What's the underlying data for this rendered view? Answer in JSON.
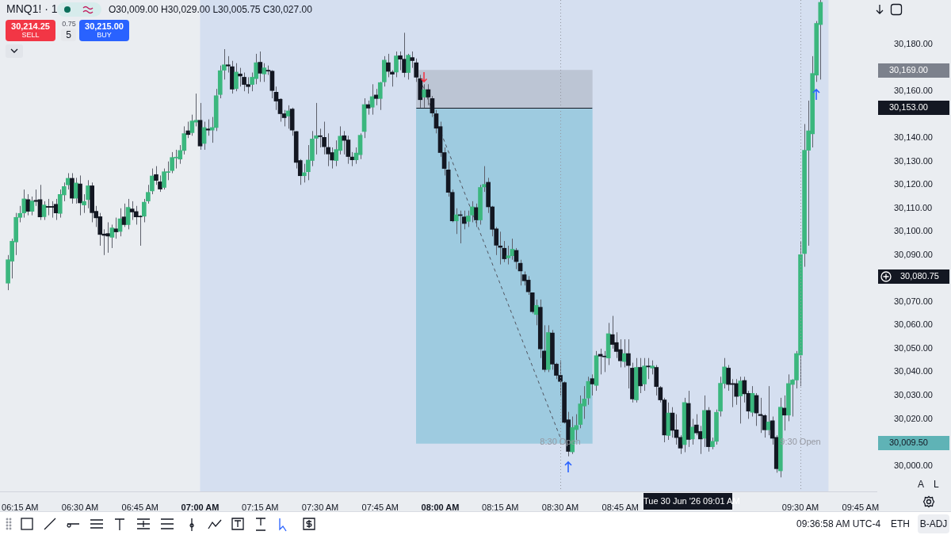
{
  "chart_data": {
    "type": "candlestick",
    "x": [
      "2026-06-30T06:12",
      "2026-06-30T06:13",
      "2026-06-30T06:14",
      "2026-06-30T06:15",
      "2026-06-30T06:16",
      "2026-06-30T06:17",
      "2026-06-30T06:18",
      "2026-06-30T06:19",
      "2026-06-30T06:20",
      "2026-06-30T06:21",
      "2026-06-30T06:22",
      "2026-06-30T06:23",
      "2026-06-30T06:24",
      "2026-06-30T06:25",
      "2026-06-30T06:26",
      "2026-06-30T06:27",
      "2026-06-30T06:28",
      "2026-06-30T06:29",
      "2026-06-30T06:30",
      "2026-06-30T06:31",
      "2026-06-30T06:32",
      "2026-06-30T06:33",
      "2026-06-30T06:34",
      "2026-06-30T06:35",
      "2026-06-30T06:36",
      "2026-06-30T06:37",
      "2026-06-30T06:38",
      "2026-06-30T06:39",
      "2026-06-30T06:40",
      "2026-06-30T06:41",
      "2026-06-30T06:42",
      "2026-06-30T06:43",
      "2026-06-30T06:44",
      "2026-06-30T06:45",
      "2026-06-30T06:46",
      "2026-06-30T06:47",
      "2026-06-30T06:48",
      "2026-06-30T06:49",
      "2026-06-30T06:50",
      "2026-06-30T06:51",
      "2026-06-30T06:52",
      "2026-06-30T06:53",
      "2026-06-30T06:54",
      "2026-06-30T06:55",
      "2026-06-30T06:56",
      "2026-06-30T06:57",
      "2026-06-30T06:58",
      "2026-06-30T06:59",
      "2026-06-30T07:00",
      "2026-06-30T07:01",
      "2026-06-30T07:02",
      "2026-06-30T07:03",
      "2026-06-30T07:04",
      "2026-06-30T07:05",
      "2026-06-30T07:06",
      "2026-06-30T07:07",
      "2026-06-30T07:08",
      "2026-06-30T07:09",
      "2026-06-30T07:10",
      "2026-06-30T07:11",
      "2026-06-30T07:12",
      "2026-06-30T07:13",
      "2026-06-30T07:14",
      "2026-06-30T07:15",
      "2026-06-30T07:16",
      "2026-06-30T07:17",
      "2026-06-30T07:18",
      "2026-06-30T07:19",
      "2026-06-30T07:20",
      "2026-06-30T07:21",
      "2026-06-30T07:22",
      "2026-06-30T07:23",
      "2026-06-30T07:24",
      "2026-06-30T07:25",
      "2026-06-30T07:26",
      "2026-06-30T07:27",
      "2026-06-30T07:28",
      "2026-06-30T07:29",
      "2026-06-30T07:30",
      "2026-06-30T07:31",
      "2026-06-30T07:32",
      "2026-06-30T07:33",
      "2026-06-30T07:34",
      "2026-06-30T07:35",
      "2026-06-30T07:36",
      "2026-06-30T07:37",
      "2026-06-30T07:38",
      "2026-06-30T07:39",
      "2026-06-30T07:40",
      "2026-06-30T07:41",
      "2026-06-30T07:42",
      "2026-06-30T07:43",
      "2026-06-30T07:44",
      "2026-06-30T07:45",
      "2026-06-30T07:46",
      "2026-06-30T07:47",
      "2026-06-30T07:48",
      "2026-06-30T07:49",
      "2026-06-30T07:50",
      "2026-06-30T07:51",
      "2026-06-30T07:52",
      "2026-06-30T07:53",
      "2026-06-30T07:54",
      "2026-06-30T07:55",
      "2026-06-30T07:56",
      "2026-06-30T07:57",
      "2026-06-30T07:58",
      "2026-06-30T07:59",
      "2026-06-30T08:00",
      "2026-06-30T08:01",
      "2026-06-30T08:02",
      "2026-06-30T08:03",
      "2026-06-30T08:04",
      "2026-06-30T08:05",
      "2026-06-30T08:06",
      "2026-06-30T08:07",
      "2026-06-30T08:08",
      "2026-06-30T08:09",
      "2026-06-30T08:10",
      "2026-06-30T08:11",
      "2026-06-30T08:12",
      "2026-06-30T08:13",
      "2026-06-30T08:14",
      "2026-06-30T08:15",
      "2026-06-30T08:16",
      "2026-06-30T08:17",
      "2026-06-30T08:18",
      "2026-06-30T08:19",
      "2026-06-30T08:20",
      "2026-06-30T08:21",
      "2026-06-30T08:22",
      "2026-06-30T08:23",
      "2026-06-30T08:24",
      "2026-06-30T08:25",
      "2026-06-30T08:26",
      "2026-06-30T08:27",
      "2026-06-30T08:28",
      "2026-06-30T08:29",
      "2026-06-30T08:30",
      "2026-06-30T08:31",
      "2026-06-30T08:32",
      "2026-06-30T08:33",
      "2026-06-30T08:34",
      "2026-06-30T08:35",
      "2026-06-30T08:36",
      "2026-06-30T08:37",
      "2026-06-30T08:38",
      "2026-06-30T08:39",
      "2026-06-30T08:40",
      "2026-06-30T08:41",
      "2026-06-30T08:42",
      "2026-06-30T08:43",
      "2026-06-30T08:44",
      "2026-06-30T08:45",
      "2026-06-30T08:46",
      "2026-06-30T08:47",
      "2026-06-30T08:48",
      "2026-06-30T08:49",
      "2026-06-30T08:50",
      "2026-06-30T08:51",
      "2026-06-30T08:52",
      "2026-06-30T08:53",
      "2026-06-30T08:54",
      "2026-06-30T08:55",
      "2026-06-30T08:56",
      "2026-06-30T08:57",
      "2026-06-30T08:58",
      "2026-06-30T08:59",
      "2026-06-30T09:00",
      "2026-06-30T09:01",
      "2026-06-30T09:02",
      "2026-06-30T09:03",
      "2026-06-30T09:04",
      "2026-06-30T09:05",
      "2026-06-30T09:06",
      "2026-06-30T09:07",
      "2026-06-30T09:08",
      "2026-06-30T09:09",
      "2026-06-30T09:10",
      "2026-06-30T09:11",
      "2026-06-30T09:12",
      "2026-06-30T09:13",
      "2026-06-30T09:14",
      "2026-06-30T09:15",
      "2026-06-30T09:16",
      "2026-06-30T09:17",
      "2026-06-30T09:18",
      "2026-06-30T09:19",
      "2026-06-30T09:20",
      "2026-06-30T09:21",
      "2026-06-30T09:22",
      "2026-06-30T09:23",
      "2026-06-30T09:24",
      "2026-06-30T09:25",
      "2026-06-30T09:26",
      "2026-06-30T09:27",
      "2026-06-30T09:28",
      "2026-06-30T09:29",
      "2026-06-30T09:30",
      "2026-06-30T09:31",
      "2026-06-30T09:32",
      "2026-06-30T09:33",
      "2026-06-30T09:34",
      "2026-06-30T09:35"
    ],
    "ohlc": [
      [
        30078,
        30090,
        30075,
        30088
      ],
      [
        30087.4,
        30097,
        30080,
        30095.9
      ],
      [
        30095.6,
        30108,
        30090,
        30106.1
      ],
      [
        30106.1,
        30111,
        30104,
        30107.8
      ],
      [
        30108,
        30118,
        30106,
        30114
      ],
      [
        30113.7,
        30116,
        30107,
        30108.7
      ],
      [
        30108.7,
        30115,
        30107,
        30113.1
      ],
      [
        30113.4,
        30118,
        30111,
        30112.9
      ],
      [
        30113.7,
        30120,
        30105,
        30106.3
      ],
      [
        30106.4,
        30113,
        30105,
        30111.4
      ],
      [
        30110.8,
        30114,
        30107,
        30110.4
      ],
      [
        30110.8,
        30113,
        30106,
        30110.4
      ],
      [
        30111.7,
        30114,
        30105,
        30108
      ],
      [
        30107.8,
        30118,
        30106,
        30115.9
      ],
      [
        30115.7,
        30121,
        30113,
        30119.3
      ],
      [
        30120,
        30125,
        30118,
        30122.8
      ],
      [
        30122.8,
        30125,
        30112,
        30114.3
      ],
      [
        30114.3,
        30123,
        30112,
        30120.8
      ],
      [
        30120.4,
        30124,
        30107,
        30112.3
      ],
      [
        30111.4,
        30116,
        30108,
        30112.9
      ],
      [
        30113.7,
        30122,
        30110,
        30119.6
      ],
      [
        30119.6,
        30121,
        30104,
        30108.1
      ],
      [
        30108.7,
        30111,
        30102,
        30105.9
      ],
      [
        30106.4,
        30108,
        30094,
        30098.8
      ],
      [
        30099,
        30101,
        30090,
        30098.4
      ],
      [
        30099.2,
        30104,
        30091,
        30098.1
      ],
      [
        30097.6,
        30103,
        30093,
        30101.6
      ],
      [
        30101.2,
        30106,
        30097,
        30099.9
      ],
      [
        30100.1,
        30110,
        30098,
        30105.5
      ],
      [
        30106.3,
        30112,
        30102,
        30103
      ],
      [
        30103,
        30114,
        30101,
        30110.4
      ],
      [
        30109.7,
        30113,
        30105,
        30108.4
      ],
      [
        30108.6,
        30111,
        30103,
        30106.3
      ],
      [
        30106.5,
        30107,
        30094,
        30106.3
      ],
      [
        30106.6,
        30114,
        30104,
        30112.6
      ],
      [
        30113.1,
        30120,
        30112,
        30116.8
      ],
      [
        30117.4,
        30127,
        30116,
        30123.8
      ],
      [
        30124.4,
        30128,
        30120,
        30121.9
      ],
      [
        30121.3,
        30124,
        30117,
        30118.2
      ],
      [
        30118.9,
        30127,
        30118,
        30125.6
      ],
      [
        30125.3,
        30130,
        30122,
        30125.6
      ],
      [
        30126.1,
        30134,
        30125,
        30131.7
      ],
      [
        30131.5,
        30135,
        30127,
        30131.8
      ],
      [
        30131,
        30137,
        30129,
        30134.7
      ],
      [
        30134.7,
        30145,
        30133,
        30141.9
      ],
      [
        30143.1,
        30147,
        30140,
        30141.5
      ],
      [
        30142.3,
        30150,
        30141,
        30147.3
      ],
      [
        30146.8,
        30159,
        30145,
        30147.6
      ],
      [
        30147.6,
        30155,
        30135,
        30136.6
      ],
      [
        30137.7,
        30147,
        30135,
        30144.5
      ],
      [
        30143.9,
        30148,
        30141,
        30143.4
      ],
      [
        30143.4,
        30149,
        30138,
        30144.5
      ],
      [
        30144.5,
        30161,
        30143,
        30158.1
      ],
      [
        30158.6,
        30171,
        30157,
        30168.8
      ],
      [
        30169,
        30178,
        30165,
        30171.3
      ],
      [
        30171.3,
        30175,
        30168,
        30170.8
      ],
      [
        30170.5,
        30173,
        30159,
        30160.9
      ],
      [
        30161.1,
        30172,
        30160,
        30168.2
      ],
      [
        30167.4,
        30170,
        30162,
        30166.5
      ],
      [
        30166,
        30168,
        30160,
        30162.9
      ],
      [
        30162.9,
        30166,
        30159,
        30162
      ],
      [
        30162.9,
        30168,
        30160,
        30166
      ],
      [
        30165.4,
        30176,
        30163,
        30172.2
      ],
      [
        30172.4,
        30177,
        30164,
        30167.7
      ],
      [
        30167.4,
        30172,
        30164,
        30170
      ],
      [
        30169,
        30171,
        30167,
        30168.6
      ],
      [
        30168.6,
        30169,
        30157,
        30160.3
      ],
      [
        30159.6,
        30162,
        30152,
        30155.8
      ],
      [
        30156.6,
        30157,
        30147,
        30150.4
      ],
      [
        30150.4,
        30152,
        30145,
        30148.7
      ],
      [
        30149.4,
        30154,
        30144,
        30151.6
      ],
      [
        30152.4,
        30153,
        30141,
        30143.4
      ],
      [
        30142.8,
        30143,
        30127,
        30129.6
      ],
      [
        30130.4,
        30131,
        30120,
        30123.9
      ],
      [
        30123.9,
        30129,
        30121,
        30125.2
      ],
      [
        30125.6,
        30137,
        30122,
        30130.6
      ],
      [
        30130.4,
        30143,
        30128,
        30139.6
      ],
      [
        30139.9,
        30155,
        30133,
        30141
      ],
      [
        30141,
        30144,
        30136,
        30140.6
      ],
      [
        30140.3,
        30147,
        30133,
        30136.3
      ],
      [
        30136,
        30142,
        30128,
        30133.2
      ],
      [
        30133.8,
        30136,
        30127,
        30130.6
      ],
      [
        30130.4,
        30139,
        30128,
        30135.1
      ],
      [
        30134.7,
        30145,
        30133,
        30140.8
      ],
      [
        30141,
        30143,
        30133,
        30139
      ],
      [
        30139.2,
        30141,
        30129,
        30132.1
      ],
      [
        30131.9,
        30134,
        30128,
        30130.7
      ],
      [
        30130.7,
        30136,
        30129,
        30133.6
      ],
      [
        30132.9,
        30142,
        30131,
        30141.2
      ],
      [
        30142.8,
        30157,
        30140,
        30154.3
      ],
      [
        30154.3,
        30156,
        30150,
        30152.8
      ],
      [
        30153.2,
        30163,
        30150,
        30157.7
      ],
      [
        30158.4,
        30161,
        30154,
        30156.9
      ],
      [
        30156.9,
        30164,
        30152,
        30163.7
      ],
      [
        30164,
        30175,
        30162,
        30173.3
      ],
      [
        30172.2,
        30176,
        30166,
        30168.5
      ],
      [
        30168.2,
        30169,
        30162,
        30167.3
      ],
      [
        30168.2,
        30177,
        30166,
        30175.1
      ],
      [
        30175.2,
        30177,
        30169,
        30173.7
      ],
      [
        30173.7,
        30185,
        30166,
        30168
      ],
      [
        30168,
        30176,
        30165,
        30175.4
      ],
      [
        30174.4,
        30177,
        30170,
        30173.1
      ],
      [
        30172.2,
        30174,
        30164,
        30166
      ],
      [
        30165.4,
        30167,
        30153,
        30156.4
      ],
      [
        30157.5,
        30163,
        30153,
        30160.7
      ],
      [
        30160.7,
        30163,
        30154,
        30157.5
      ],
      [
        30156.9,
        30158,
        30149,
        30150.7
      ],
      [
        30150.4,
        30152,
        30142,
        30144.2
      ],
      [
        30144.9,
        30147,
        30132,
        30133.8
      ],
      [
        30133.8,
        30136,
        30124,
        30127
      ],
      [
        30126.4,
        30130,
        30115,
        30116.8
      ],
      [
        30116.8,
        30118,
        30104,
        30104.6
      ],
      [
        30104.6,
        30110,
        30099,
        30107.2
      ],
      [
        30107,
        30109,
        30095,
        30106.9
      ],
      [
        30106.3,
        30109,
        30101,
        30103.5
      ],
      [
        30104.4,
        30109,
        30102,
        30106.7
      ],
      [
        30107.1,
        30113,
        30104,
        30110.6
      ],
      [
        30110.3,
        30112,
        30102,
        30105
      ],
      [
        30105,
        30120,
        30103,
        30118.9
      ],
      [
        30119.1,
        30128,
        30117,
        30120.2
      ],
      [
        30121.1,
        30123,
        30108,
        30110.6
      ],
      [
        30110.6,
        30111,
        30098,
        30101
      ],
      [
        30101.2,
        30102,
        30090,
        30094.2
      ],
      [
        30093.9,
        30100,
        30086,
        30093.3
      ],
      [
        30092.9,
        30096,
        30087,
        30088.4
      ],
      [
        30088.8,
        30094,
        30086,
        30089.7
      ],
      [
        30089.7,
        30097,
        30088,
        30092.5
      ],
      [
        30092,
        30093,
        30084,
        30087.2
      ],
      [
        30086.5,
        30088,
        30077,
        30083.2
      ],
      [
        30081.6,
        30083,
        30077,
        30079
      ],
      [
        30079.3,
        30081,
        30073,
        30074.3
      ],
      [
        30073.9,
        30074,
        30065,
        30065.8
      ],
      [
        30064.6,
        30071,
        30060,
        30068.5
      ],
      [
        30067.7,
        30071,
        30046,
        30049.9
      ],
      [
        30049,
        30060,
        30040,
        30041.1
      ],
      [
        30041.1,
        30060,
        30040,
        30056.9
      ],
      [
        30056.7,
        30058,
        30041,
        30043.4
      ],
      [
        30043.4,
        30044,
        30037,
        30038.6
      ],
      [
        30038.6,
        30045,
        30030,
        30036
      ],
      [
        30035.5,
        30036,
        30018,
        30018.5
      ],
      [
        30019.6,
        30023,
        30004,
        30006.1
      ],
      [
        30005.9,
        30021,
        30005,
        30016.3
      ],
      [
        30015.4,
        30022,
        30011,
        30017.2
      ],
      [
        30017.6,
        30030,
        30016,
        30026.4
      ],
      [
        30025.5,
        30034,
        30020,
        30028.5
      ],
      [
        30028.9,
        30038,
        30026,
        30036
      ],
      [
        30037.2,
        30039,
        30030,
        30034.9
      ],
      [
        30034.3,
        30049,
        30032,
        30047
      ],
      [
        30047.6,
        30050,
        30039,
        30046.8
      ],
      [
        30046.8,
        30049,
        30040,
        30046.5
      ],
      [
        30046,
        30061,
        30043,
        30056.4
      ],
      [
        30056,
        30064,
        30050,
        30051.8
      ],
      [
        30052.6,
        30057,
        30046,
        30048.8
      ],
      [
        30049.6,
        30054,
        30042,
        30044.8
      ],
      [
        30044.5,
        30054,
        30042,
        30047.9
      ],
      [
        30047.9,
        30054,
        30033,
        30042.8
      ],
      [
        30041.7,
        30044,
        30027,
        30028.5
      ],
      [
        30028.1,
        30046,
        30027,
        30042
      ],
      [
        30042,
        30046,
        30031,
        30034.1
      ],
      [
        30034.9,
        30046,
        30032,
        30042.6
      ],
      [
        30042.6,
        30046,
        30037,
        30042.2
      ],
      [
        30041.7,
        30045,
        30039,
        30042.6
      ],
      [
        30042,
        30043,
        30030,
        30033.8
      ],
      [
        30033.4,
        30034,
        30027,
        30028.1
      ],
      [
        30028.1,
        30029,
        30010,
        30013.1
      ],
      [
        30012.9,
        30027,
        30011,
        30022.5
      ],
      [
        30022.5,
        30025,
        30012,
        30015.1
      ],
      [
        30015.3,
        30022,
        30009,
        30012
      ],
      [
        30012.1,
        30013,
        30005,
        30007.5
      ],
      [
        30009,
        30029,
        30005.75,
        30027
      ],
      [
        30026.6,
        30032,
        30008,
        30011.2
      ],
      [
        30011.4,
        30020,
        30009,
        30016.5
      ],
      [
        30017.4,
        30022,
        30013,
        30014
      ],
      [
        30014.6,
        30017,
        30005,
        30011.4
      ],
      [
        30011.7,
        30030,
        30008,
        30023.6
      ],
      [
        30023.6,
        30025,
        30006,
        30008.1
      ],
      [
        30008.1,
        30012,
        30007,
        30010.4
      ],
      [
        30010.4,
        30024,
        30009,
        30022.8
      ],
      [
        30023.3,
        30038,
        30021,
        30035.2
      ],
      [
        30035.1,
        30046,
        30033,
        30042.2
      ],
      [
        30041.7,
        30043,
        30032,
        30034.7
      ],
      [
        30035.1,
        30037,
        30025,
        30034.7
      ],
      [
        30035.1,
        30037,
        30026,
        30029.6
      ],
      [
        30029.8,
        30038,
        30018,
        30036.2
      ],
      [
        30036.4,
        30038,
        30027,
        30030.7
      ],
      [
        30030.9,
        30032,
        30020,
        30023.3
      ],
      [
        30022.8,
        30034,
        30021,
        30030.9
      ],
      [
        30030,
        30031,
        30017,
        30022.5
      ],
      [
        30021.9,
        30029,
        30014,
        30021.4
      ],
      [
        30021.4,
        30022,
        30012,
        30015.3
      ],
      [
        30015.3,
        30034,
        30013,
        30018.7
      ],
      [
        30019.2,
        30021,
        30009,
        30011.7
      ],
      [
        30012.1,
        30013,
        29997,
        29998.7
      ],
      [
        29997.8,
        30029,
        29995,
        30025
      ],
      [
        30024.6,
        30030,
        30015,
        30021.6
      ],
      [
        30021.6,
        30039,
        30019,
        30035.1
      ],
      [
        30034.7,
        30037,
        30021,
        30036.6
      ],
      [
        30036.6,
        30049,
        30033,
        30047.9
      ],
      [
        30047.3,
        30096,
        30034,
        30090.2
      ],
      [
        30090.6,
        30146,
        30085,
        30134.8
      ],
      [
        30134.8,
        30156,
        30094,
        30143.1
      ],
      [
        30141.8,
        30175,
        30136,
        30167.6
      ],
      [
        30166.9,
        30190,
        30164,
        30189
      ],
      [
        30188.5,
        30199,
        30165,
        30198
      ]
    ],
    "series": [
      {
        "type": "bar",
        "x": [
          "2026-06-30T08:16"
        ],
        "base": [
          30153
        ],
        "values": [
          16
        ],
        "color": "#bcc5d4"
      },
      {
        "type": "bar",
        "x": [
          "2026-06-30T08:16"
        ],
        "base": [
          30009.5
        ],
        "values": [
          143.5
        ],
        "color": "#9ecbe0"
      },
      {
        "type": "line",
        "x": [
          "2026-06-30T07:55",
          "2026-06-30T08:30"
        ],
        "values": [
          30165,
          30012
        ],
        "color": "#50535e",
        "line_style": "dashed"
      }
    ],
    "xlim": [
      "2026-06-30T06:10",
      "2026-06-30T09:49"
    ],
    "xticks": [
      {
        "value": "2026-06-30T06:15",
        "label": "06:15 AM"
      },
      {
        "value": "2026-06-30T06:30",
        "label": "06:30 AM"
      },
      {
        "value": "2026-06-30T06:45",
        "label": "06:45 AM"
      },
      {
        "value": "2026-06-30T07:00",
        "label": "07:00 AM"
      },
      {
        "value": "2026-06-30T07:15",
        "label": "07:15 AM"
      },
      {
        "value": "2026-06-30T07:30",
        "label": "07:30 AM"
      },
      {
        "value": "2026-06-30T07:45",
        "label": "07:45 AM"
      },
      {
        "value": "2026-06-30T08:00",
        "label": "08:00 AM"
      },
      {
        "value": "2026-06-30T08:15",
        "label": "08:15 AM"
      },
      {
        "value": "2026-06-30T08:30",
        "label": "08:30 AM"
      },
      {
        "value": "2026-06-30T08:45",
        "label": "08:45 AM"
      },
      {
        "value": "2026-06-30T09:30",
        "label": "09:30 AM"
      },
      {
        "value": "2026-06-30T09:45",
        "label": "09:45 AM"
      }
    ],
    "ylim": [
      29989,
      30199
    ],
    "yticks": [
      {
        "value": 30000,
        "label": "30,000.00"
      },
      {
        "value": 30020,
        "label": "30,020.00"
      },
      {
        "value": 30030,
        "label": "30,030.00"
      },
      {
        "value": 30040,
        "label": "30,040.00"
      },
      {
        "value": 30050,
        "label": "30,050.00"
      },
      {
        "value": 30060,
        "label": "30,060.00"
      },
      {
        "value": 30070,
        "label": "30,070.00"
      },
      {
        "value": 30090,
        "label": "30,090.00"
      },
      {
        "value": 30100,
        "label": "30,100.00"
      },
      {
        "value": 30110,
        "label": "30,110.00"
      },
      {
        "value": 30120,
        "label": "30,120.00"
      },
      {
        "value": 30130,
        "label": "30,130.00"
      },
      {
        "value": 30140,
        "label": "30,140.00"
      },
      {
        "value": 30160,
        "label": "30,160.00"
      },
      {
        "value": 30180,
        "label": "30,180.00"
      }
    ],
    "bands": [
      {
        "axis": "x",
        "from": "2026-06-30T07:00",
        "to": "2026-06-30T09:37",
        "color": "#d5dff0"
      }
    ],
    "ref_lines": [
      {
        "axis": "x",
        "value": "2026-06-30T08:30",
        "label": "8:30 Open",
        "color": "#9598a1",
        "line_style": "dotted"
      },
      {
        "axis": "x",
        "value": "2026-06-30T09:30",
        "label": "9:30 Open",
        "color": "#9598a1",
        "line_style": "dotted"
      },
      {
        "axis": "y",
        "value": 30153,
        "color": "#131722"
      }
    ],
    "annotations": [
      "MNQ1! · 1",
      "O30,009.00 H30,029.00 L30,005.75 C30,027.00",
      "30,214.25",
      "SELL",
      "0.75",
      "5",
      "30,215.00",
      "BUY",
      "Tue 30 Jun '26  09:01 AM",
      "09:36:58 AM UTC-4",
      "ETH",
      "B-ADJ",
      "A",
      "L",
      "30,169.00",
      "30,153.00",
      "30,080.75",
      "30,009.50"
    ]
  }
}
